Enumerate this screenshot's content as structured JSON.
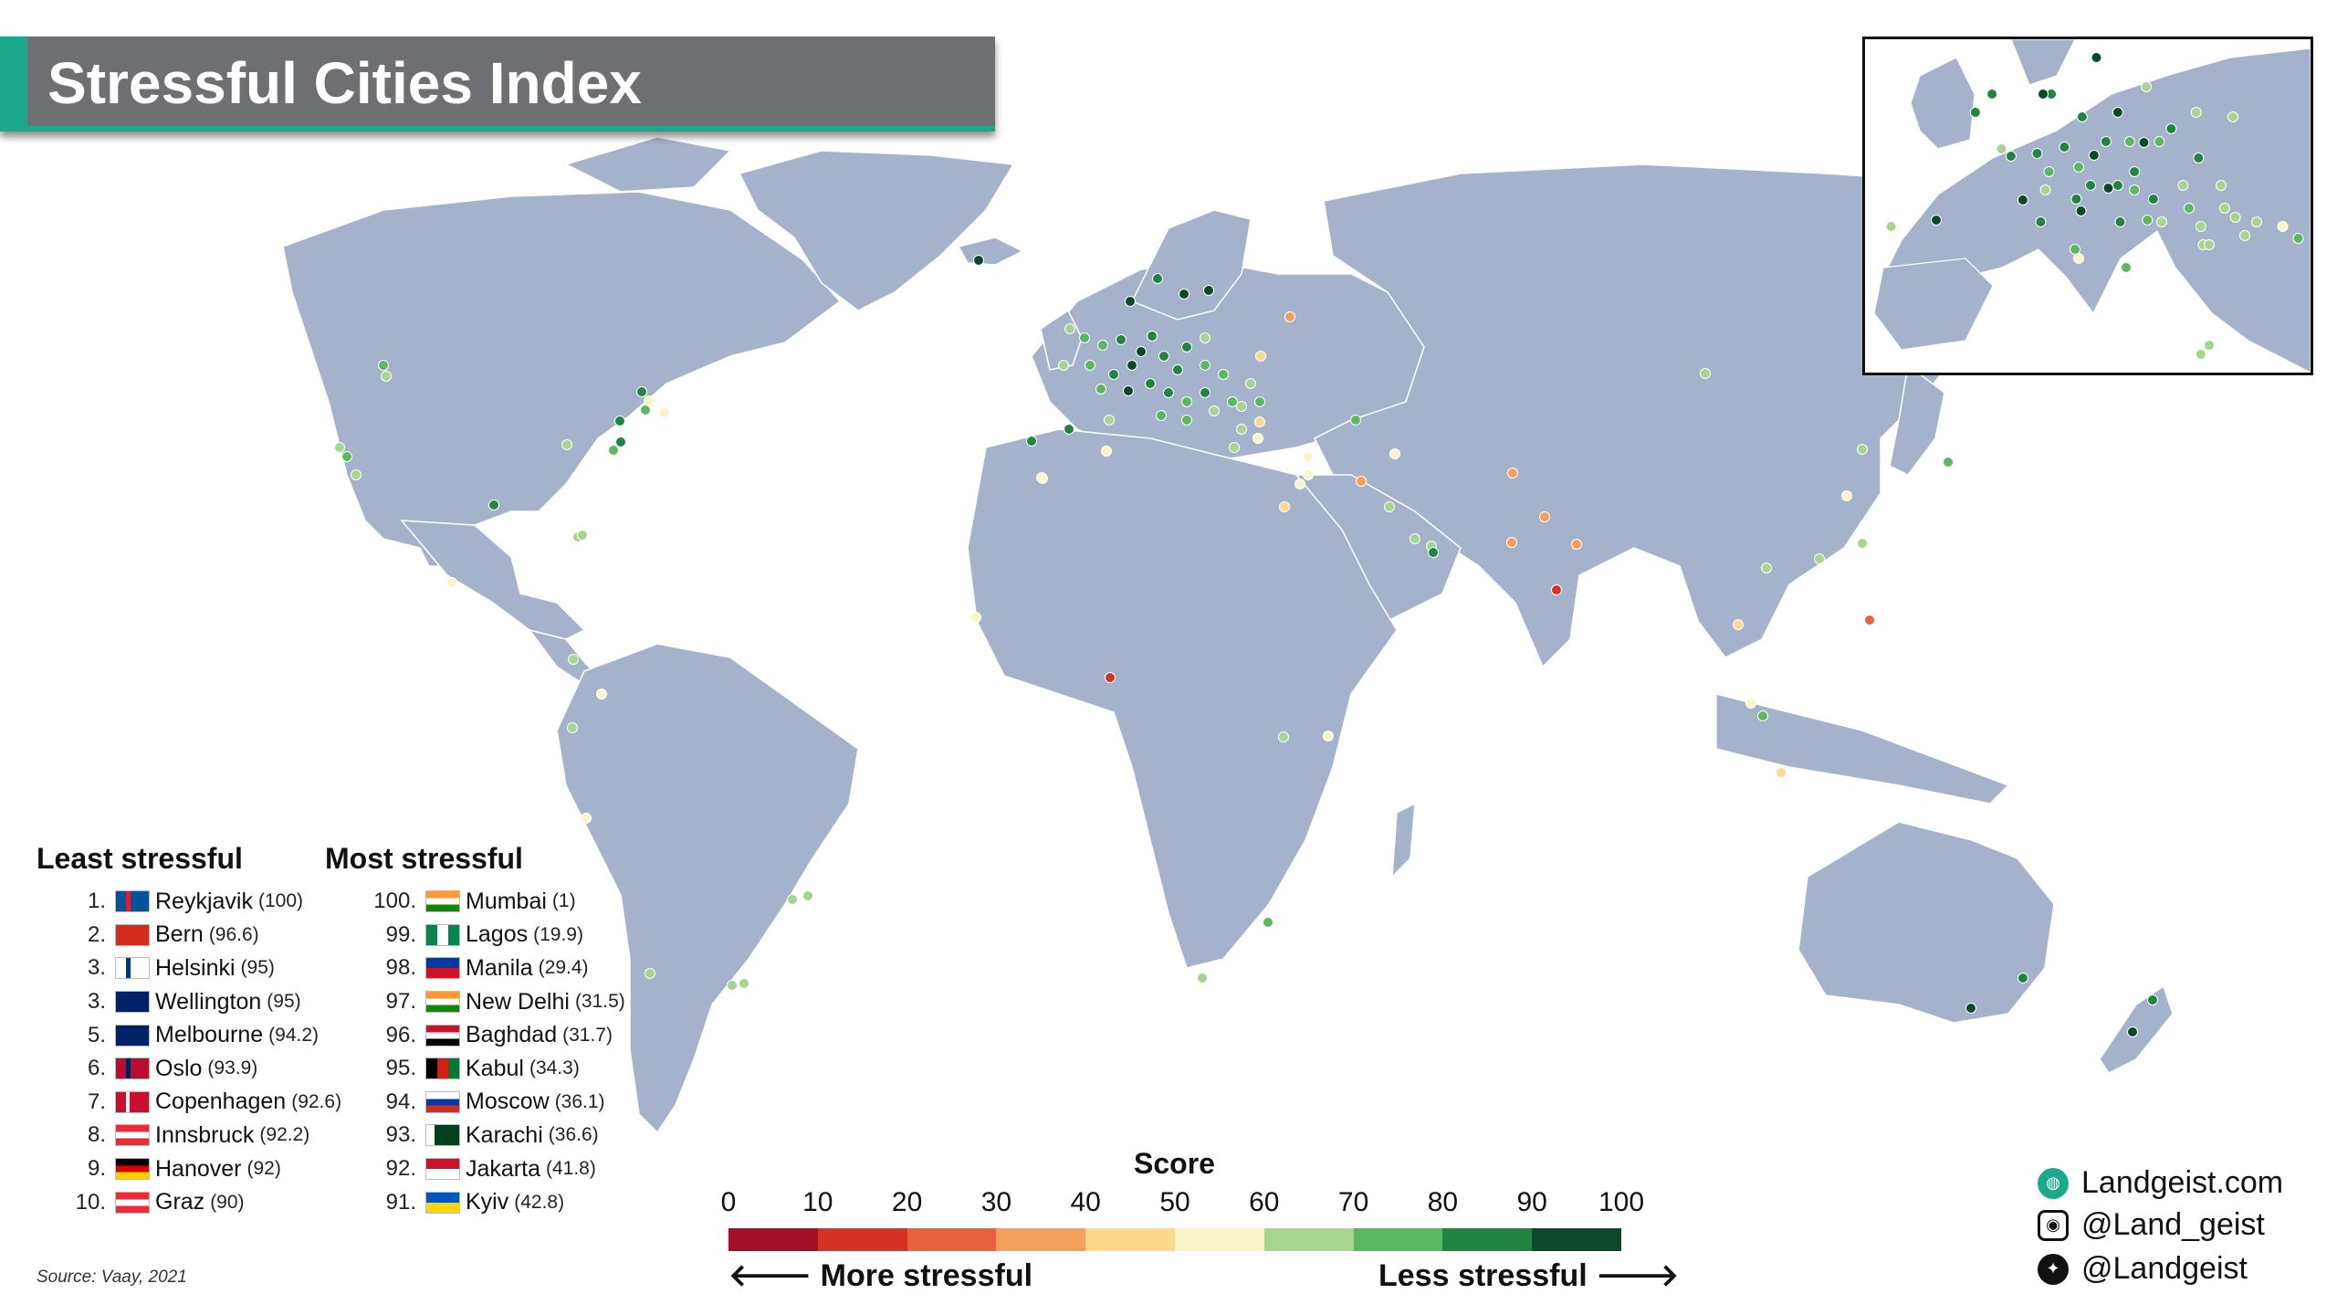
{
  "title": "Stressful Cities Index",
  "colors": {
    "ocean": "#ffffff",
    "land": "#a4b2cb",
    "title_bg": "#6e6f73",
    "accent": "#1aa98b",
    "scale": [
      "#a50f26",
      "#d73027",
      "#e8613f",
      "#f4a05a",
      "#fdd98b",
      "#fbf4c8",
      "#a6d58e",
      "#5cb85f",
      "#218441",
      "#0a4a2a"
    ]
  },
  "least": {
    "heading": "Least stressful",
    "items": [
      {
        "rank": "1.",
        "city": "Reykjavik",
        "score": "(100)",
        "flag": "iceland-flag"
      },
      {
        "rank": "2.",
        "city": "Bern",
        "score": "(96.6)",
        "flag": "switzerland-flag"
      },
      {
        "rank": "3.",
        "city": "Helsinki",
        "score": "(95)",
        "flag": "finland-flag"
      },
      {
        "rank": "3.",
        "city": "Wellington",
        "score": "(95)",
        "flag": "new-zealand-flag"
      },
      {
        "rank": "5.",
        "city": "Melbourne",
        "score": "(94.2)",
        "flag": "australia-flag"
      },
      {
        "rank": "6.",
        "city": "Oslo",
        "score": "(93.9)",
        "flag": "norway-flag"
      },
      {
        "rank": "7.",
        "city": "Copenhagen",
        "score": "(92.6)",
        "flag": "denmark-flag"
      },
      {
        "rank": "8.",
        "city": "Innsbruck",
        "score": "(92.2)",
        "flag": "austria-flag"
      },
      {
        "rank": "9.",
        "city": "Hanover",
        "score": "(92)",
        "flag": "germany-flag"
      },
      {
        "rank": "10.",
        "city": "Graz",
        "score": "(90)",
        "flag": "austria-flag"
      }
    ]
  },
  "most": {
    "heading": "Most stressful",
    "items": [
      {
        "rank": "100.",
        "city": "Mumbai",
        "score": "(1)",
        "flag": "india-flag"
      },
      {
        "rank": "99.",
        "city": "Lagos",
        "score": "(19.9)",
        "flag": "nigeria-flag"
      },
      {
        "rank": "98.",
        "city": "Manila",
        "score": "(29.4)",
        "flag": "philippines-flag"
      },
      {
        "rank": "97.",
        "city": "New Delhi",
        "score": "(31.5)",
        "flag": "india-flag"
      },
      {
        "rank": "96.",
        "city": "Baghdad",
        "score": "(31.7)",
        "flag": "iraq-flag"
      },
      {
        "rank": "95.",
        "city": "Kabul",
        "score": "(34.3)",
        "flag": "afghanistan-flag"
      },
      {
        "rank": "94.",
        "city": "Moscow",
        "score": "(36.1)",
        "flag": "russia-flag"
      },
      {
        "rank": "93.",
        "city": "Karachi",
        "score": "(36.6)",
        "flag": "pakistan-flag"
      },
      {
        "rank": "92.",
        "city": "Jakarta",
        "score": "(41.8)",
        "flag": "indonesia-flag"
      },
      {
        "rank": "91.",
        "city": "Kyiv",
        "score": "(42.8)",
        "flag": "ukraine-flag"
      }
    ]
  },
  "scale": {
    "title": "Score",
    "ticks": [
      "0",
      "10",
      "20",
      "30",
      "40",
      "50",
      "60",
      "70",
      "80",
      "90",
      "100"
    ],
    "left_label": "More stressful",
    "right_label": "Less stressful"
  },
  "source": "Source: Vaay, 2021",
  "social": {
    "website": "Landgeist.com",
    "instagram": "@Land_geist",
    "twitter": "@Landgeist"
  }
}
